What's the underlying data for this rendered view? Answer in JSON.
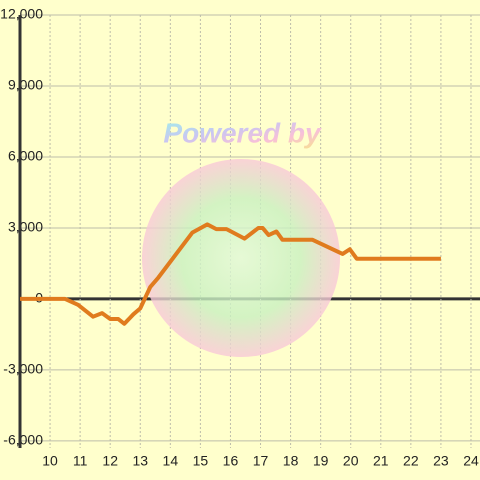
{
  "chart_data": {
    "type": "line",
    "watermark": "Powered by",
    "x": [
      9,
      10.5,
      10.93,
      11.43,
      11.73,
      12,
      12.27,
      12.47,
      12.77,
      13,
      13.33,
      13.6,
      14.73,
      15.23,
      15.53,
      15.87,
      16.47,
      16.93,
      17.07,
      17.27,
      17.53,
      17.73,
      18.73,
      19.73,
      19.97,
      20.2,
      23
    ],
    "series": [
      {
        "color": "#e07b1e",
        "values": [
          0,
          0,
          -250,
          -750,
          -600,
          -850,
          -850,
          -1050,
          -650,
          -400,
          500,
          900,
          2800,
          3150,
          2950,
          2950,
          2550,
          3000,
          3000,
          2700,
          2850,
          2500,
          2500,
          1900,
          2100,
          1700,
          1700
        ]
      }
    ],
    "xlim": [
      9,
      24.3
    ],
    "xticks": [
      10,
      11,
      12,
      13,
      14,
      15,
      16,
      17,
      18,
      19,
      20,
      21,
      22,
      23,
      24
    ],
    "ylim": [
      -6300,
      12000
    ],
    "yticks": [
      {
        "value": -6000,
        "label": "-6,000"
      },
      {
        "value": -3000,
        "label": "-3,000"
      },
      0,
      {
        "value": 3000,
        "label": "3,000"
      },
      {
        "value": 6000,
        "label": "6,000"
      },
      {
        "value": 9000,
        "label": "9,000"
      },
      {
        "value": 12000,
        "label": "12,000"
      }
    ],
    "grid": true
  }
}
